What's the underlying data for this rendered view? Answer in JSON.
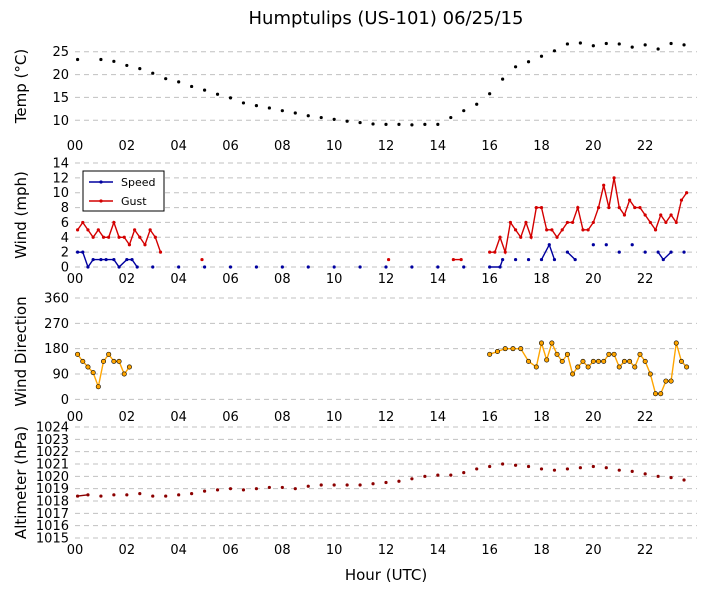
{
  "chart_data": {
    "title": "Humptulips (US-101) 06/25/15",
    "xlabel": "Hour (UTC)",
    "x_tick_labels": [
      "00",
      "02",
      "04",
      "06",
      "08",
      "10",
      "12",
      "14",
      "16",
      "18",
      "20",
      "22"
    ],
    "x_range_hours": [
      0,
      24
    ],
    "panels": [
      {
        "type": "line",
        "ylabel": "Temp (°C)",
        "ylim": [
          7,
          28
        ],
        "yticks": [
          10,
          15,
          20,
          25
        ],
        "grid": "horizontal dashed",
        "series": [
          {
            "color": "#000000",
            "x": [
              0.1,
              1.0,
              1.5,
              2.0,
              2.5,
              3.0,
              3.5,
              4.0,
              4.5,
              5.0,
              5.5,
              6.0,
              6.5,
              7.0,
              7.5,
              8.0,
              8.5,
              9.0,
              9.5,
              10.0,
              10.5,
              11.0,
              11.5,
              12.0,
              12.5,
              13.0,
              13.5,
              14.0,
              14.5,
              15.0,
              15.5,
              16.0,
              16.5,
              17.0,
              17.5,
              18.0,
              18.5,
              19.0,
              19.5,
              20.0,
              20.5,
              21.0,
              21.5,
              22.0,
              22.5,
              23.0,
              23.5
            ],
            "y": [
              23.3,
              23.3,
              22.9,
              22.0,
              21.3,
              20.3,
              19.1,
              18.4,
              17.4,
              16.6,
              15.7,
              14.9,
              13.8,
              13.2,
              12.7,
              12.1,
              11.6,
              11.0,
              10.6,
              10.2,
              9.8,
              9.5,
              9.2,
              9.1,
              9.1,
              9.0,
              9.1,
              9.1,
              10.6,
              12.1,
              13.5,
              15.8,
              19.0,
              21.7,
              22.8,
              24.0,
              25.2,
              26.7,
              26.9,
              26.3,
              26.8,
              26.7,
              26.0,
              26.5,
              25.6,
              26.8,
              26.5
            ]
          }
        ]
      },
      {
        "type": "line",
        "ylabel": "Wind (mph)",
        "ylim": [
          0,
          14
        ],
        "yticks": [
          0,
          2,
          4,
          6,
          8,
          10,
          12,
          14
        ],
        "legend": "upper-left",
        "series": [
          {
            "name": "Speed",
            "color": "#00009f",
            "x": [
              0.1,
              0.3,
              0.5,
              0.7,
              1.0,
              1.2,
              1.5,
              1.7,
              2.0,
              2.2,
              2.4,
              3.0,
              4.0,
              5.0,
              6.0,
              7.0,
              8.0,
              9.0,
              10.0,
              11.0,
              12.0,
              13.0,
              14.0,
              15.0,
              16.0,
              16.4,
              16.5,
              17.0,
              17.5,
              18.0,
              18.3,
              18.5,
              19.0,
              19.3,
              20.0,
              20.5,
              21.0,
              21.5,
              22.0,
              22.5,
              22.7,
              23.0,
              23.5
            ],
            "y": [
              2,
              2,
              0,
              1,
              1,
              1,
              1,
              0,
              1,
              1,
              0,
              0,
              0,
              0,
              0,
              0,
              0,
              0,
              0,
              0,
              0,
              0,
              0,
              0,
              0,
              0,
              1,
              1,
              1,
              1,
              3,
              1,
              2,
              1,
              3,
              3,
              2,
              3,
              2,
              2,
              1,
              2,
              2
            ]
          },
          {
            "name": "Gust",
            "color": "#d40000",
            "x": [
              0.1,
              0.3,
              0.5,
              0.7,
              0.9,
              1.1,
              1.3,
              1.5,
              1.7,
              1.9,
              2.1,
              2.3,
              2.5,
              2.7,
              2.9,
              3.1,
              3.3,
              4.9,
              12.1,
              14.6,
              14.9,
              16.0,
              16.2,
              16.4,
              16.6,
              16.8,
              17.0,
              17.2,
              17.4,
              17.6,
              17.8,
              18.0,
              18.2,
              18.4,
              18.6,
              18.8,
              19.0,
              19.2,
              19.4,
              19.6,
              19.8,
              20.0,
              20.2,
              20.4,
              20.6,
              20.8,
              21.0,
              21.2,
              21.4,
              21.6,
              21.8,
              22.0,
              22.2,
              22.4,
              22.6,
              22.8,
              23.0,
              23.2,
              23.4,
              23.6
            ],
            "y": [
              5,
              6,
              5,
              4,
              5,
              4,
              4,
              6,
              4,
              4,
              3,
              5,
              4,
              3,
              5,
              4,
              2,
              1,
              1,
              1,
              1,
              2,
              2,
              4,
              2,
              6,
              5,
              4,
              6,
              4,
              8,
              8,
              5,
              5,
              4,
              5,
              6,
              6,
              8,
              5,
              5,
              6,
              8,
              11,
              8,
              12,
              8,
              7,
              9,
              8,
              8,
              7,
              6,
              5,
              7,
              6,
              7,
              6,
              9,
              10
            ]
          }
        ]
      },
      {
        "type": "scatter",
        "ylabel": "Wind Direction",
        "ylim": [
          -20,
          360
        ],
        "yticks": [
          0,
          90,
          180,
          270,
          360
        ],
        "series": [
          {
            "color": "#ffa500",
            "x": [
              0.1,
              0.3,
              0.5,
              0.7,
              0.9,
              1.1,
              1.3,
              1.5,
              1.7,
              1.9,
              2.1,
              16.0,
              16.3,
              16.6,
              16.9,
              17.2,
              17.5,
              17.8,
              18.0,
              18.2,
              18.4,
              18.6,
              18.8,
              19.0,
              19.2,
              19.4,
              19.6,
              19.8,
              20.0,
              20.2,
              20.4,
              20.6,
              20.8,
              21.0,
              21.2,
              21.4,
              21.6,
              21.8,
              22.0,
              22.2,
              22.4,
              22.6,
              22.8,
              23.0,
              23.2,
              23.4,
              23.6
            ],
            "y": [
              160,
              135,
              115,
              95,
              45,
              135,
              160,
              135,
              135,
              90,
              115,
              160,
              170,
              180,
              180,
              180,
              135,
              115,
              200,
              140,
              200,
              160,
              135,
              160,
              90,
              115,
              135,
              115,
              135,
              135,
              135,
              160,
              160,
              115,
              135,
              135,
              115,
              160,
              135,
              90,
              20,
              20,
              65,
              65,
              200,
              135,
              115
            ]
          }
        ]
      },
      {
        "type": "line",
        "ylabel": "Altimeter (hPa)",
        "ylim": [
          1015,
          1024
        ],
        "yticks": [
          1015,
          1016,
          1017,
          1018,
          1019,
          1020,
          1021,
          1022,
          1023,
          1024
        ],
        "series": [
          {
            "color": "#8b0000",
            "x": [
              0.1,
              0.5,
              1.0,
              1.5,
              2.0,
              2.5,
              3.0,
              3.5,
              4.0,
              4.5,
              5.0,
              5.5,
              6.0,
              6.5,
              7.0,
              7.5,
              8.0,
              8.5,
              9.0,
              9.5,
              10.0,
              10.5,
              11.0,
              11.5,
              12.0,
              12.5,
              13.0,
              13.5,
              14.0,
              14.5,
              15.0,
              15.5,
              16.0,
              16.5,
              17.0,
              17.5,
              18.0,
              18.5,
              19.0,
              19.5,
              20.0,
              20.5,
              21.0,
              21.5,
              22.0,
              22.5,
              23.0,
              23.5
            ],
            "y": [
              1018.4,
              1018.5,
              1018.4,
              1018.5,
              1018.5,
              1018.6,
              1018.4,
              1018.4,
              1018.5,
              1018.6,
              1018.8,
              1018.9,
              1019.0,
              1018.9,
              1019.0,
              1019.1,
              1019.1,
              1019.0,
              1019.2,
              1019.3,
              1019.3,
              1019.3,
              1019.3,
              1019.4,
              1019.5,
              1019.6,
              1019.8,
              1020.0,
              1020.1,
              1020.1,
              1020.3,
              1020.6,
              1020.8,
              1021.0,
              1020.9,
              1020.8,
              1020.6,
              1020.5,
              1020.6,
              1020.7,
              1020.8,
              1020.7,
              1020.5,
              1020.4,
              1020.2,
              1020.0,
              1019.9,
              1019.7
            ]
          }
        ]
      }
    ]
  }
}
